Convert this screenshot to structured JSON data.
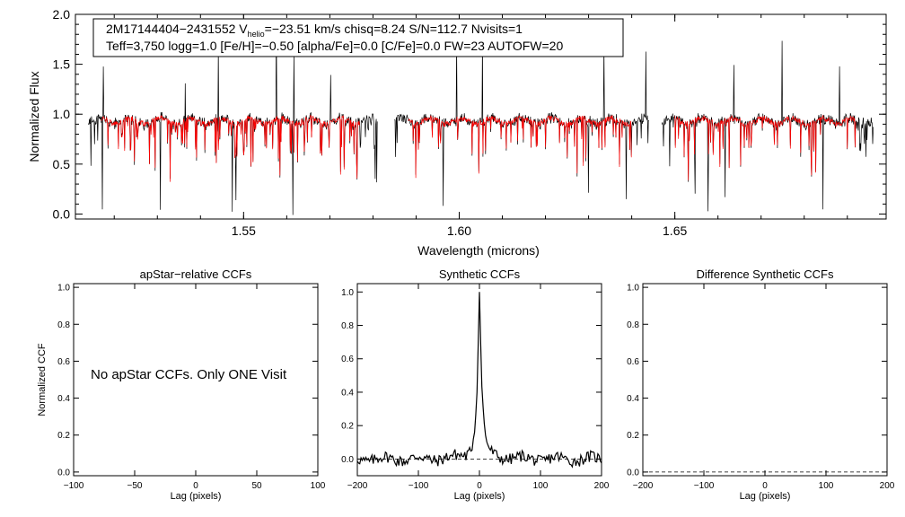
{
  "chart_data": [
    {
      "type": "line",
      "id": "spectrum",
      "annotation_line1_pre": "2M17144404−2431552  V",
      "annotation_sub": "helio",
      "annotation_line1_post": "=−23.51 km/s  chisq=8.24  S/N=112.7  Nvisits=1",
      "annotation_line2": "Teff=3,750 logg=1.0 [Fe/H]=−0.50 [alpha/Fe]=0.0 [C/Fe]=0.0 FW=23 AUTOFW=20",
      "xlabel": "Wavelength (microns)",
      "ylabel": "Normalized Flux",
      "xlim": [
        1.511,
        1.699
      ],
      "ylim": [
        -0.05,
        2.0
      ],
      "xticks": [
        "1.55",
        "1.60",
        "1.65"
      ],
      "xtick_values": [
        1.55,
        1.6,
        1.65
      ],
      "yticks": [
        "0.0",
        "0.5",
        "1.0",
        "1.5",
        "2.0"
      ],
      "ytick_values": [
        0.0,
        0.5,
        1.0,
        1.5,
        2.0
      ],
      "series": [
        {
          "name": "observed",
          "color": "#000000"
        },
        {
          "name": "model",
          "color": "#ff0000"
        }
      ],
      "chips": [
        [
          1.514,
          1.581
        ],
        [
          1.585,
          1.644
        ],
        [
          1.647,
          1.696
        ]
      ]
    },
    {
      "type": "line",
      "id": "apstar-ccf",
      "title": "apStar−relative CCFs",
      "ylabel": "Normalized CCF",
      "xlabel": "Lag (pixels)",
      "xlim": [
        -100,
        100
      ],
      "ylim": [
        -0.02,
        1.02
      ],
      "xticks": [
        "−100",
        "−50",
        "0",
        "50",
        "100"
      ],
      "xtick_values": [
        -100,
        -50,
        0,
        50,
        100
      ],
      "yticks": [
        "0.0",
        "0.2",
        "0.4",
        "0.6",
        "0.8",
        "1.0"
      ],
      "ytick_values": [
        0.0,
        0.2,
        0.4,
        0.6,
        0.8,
        1.0
      ],
      "message": "No apStar CCFs.  Only ONE Visit"
    },
    {
      "type": "line",
      "id": "synthetic-ccf",
      "title": "Synthetic CCFs",
      "xlabel": "Lag (pixels)",
      "xlim": [
        -200,
        200
      ],
      "ylim": [
        -0.1,
        1.05
      ],
      "xticks": [
        "−200",
        "−100",
        "0",
        "100",
        "200"
      ],
      "xtick_values": [
        -200,
        -100,
        0,
        100,
        200
      ],
      "yticks": [
        "0.0",
        "0.2",
        "0.4",
        "0.6",
        "0.8",
        "1.0"
      ],
      "ytick_values": [
        0.0,
        0.2,
        0.4,
        0.6,
        0.8,
        1.0
      ],
      "peak_lag": 0,
      "peak_value": 1.0,
      "baseline": 0.0
    },
    {
      "type": "line",
      "id": "difference-ccf",
      "title": "Difference Synthetic CCFs",
      "xlabel": "Lag (pixels)",
      "xlim": [
        -200,
        200
      ],
      "ylim": [
        -0.02,
        1.02
      ],
      "xticks": [
        "−200",
        "−100",
        "0",
        "100",
        "200"
      ],
      "xtick_values": [
        -200,
        -100,
        0,
        100,
        200
      ],
      "yticks": [
        "0.0",
        "0.2",
        "0.4",
        "0.6",
        "0.8",
        "1.0"
      ],
      "ytick_values": [
        0.0,
        0.2,
        0.4,
        0.6,
        0.8,
        1.0
      ],
      "baseline": 0.0
    }
  ]
}
